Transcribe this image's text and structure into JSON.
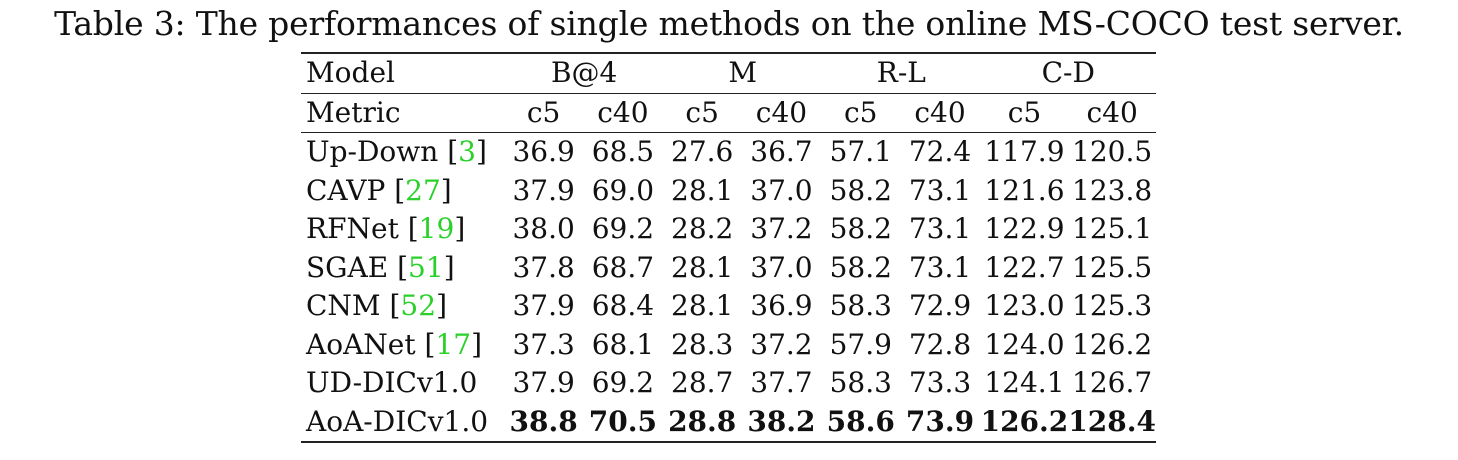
{
  "caption": "Table 3: The performances of single methods on the online MS-COCO test server.",
  "header": {
    "model_label": "Model",
    "metric_label": "Metric",
    "groups": [
      "B@4",
      "M",
      "R-L",
      "C-D"
    ],
    "subcols": [
      "c5",
      "c40",
      "c5",
      "c40",
      "c5",
      "c40",
      "c5",
      "c40"
    ]
  },
  "rows": [
    {
      "model": "Up-Down",
      "cite": "3",
      "values": [
        "36.9",
        "68.5",
        "27.6",
        "36.7",
        "57.1",
        "72.4",
        "117.9",
        "120.5"
      ]
    },
    {
      "model": "CAVP",
      "cite": "27",
      "values": [
        "37.9",
        "69.0",
        "28.1",
        "37.0",
        "58.2",
        "73.1",
        "121.6",
        "123.8"
      ]
    },
    {
      "model": "RFNet",
      "cite": "19",
      "values": [
        "38.0",
        "69.2",
        "28.2",
        "37.2",
        "58.2",
        "73.1",
        "122.9",
        "125.1"
      ]
    },
    {
      "model": "SGAE",
      "cite": "51",
      "values": [
        "37.8",
        "68.7",
        "28.1",
        "37.0",
        "58.2",
        "73.1",
        "122.7",
        "125.5"
      ]
    },
    {
      "model": "CNM",
      "cite": "52",
      "values": [
        "37.9",
        "68.4",
        "28.1",
        "36.9",
        "58.3",
        "72.9",
        "123.0",
        "125.3"
      ]
    },
    {
      "model": "AoANet",
      "cite": "17",
      "values": [
        "37.3",
        "68.1",
        "28.3",
        "37.2",
        "57.9",
        "72.8",
        "124.0",
        "126.2"
      ]
    },
    {
      "model": "UD-DICv1.0",
      "cite": "",
      "values": [
        "37.9",
        "69.2",
        "28.7",
        "37.7",
        "58.3",
        "73.3",
        "124.1",
        "126.7"
      ]
    },
    {
      "model": "AoA-DICv1.0",
      "cite": "",
      "values": [
        "38.8",
        "70.5",
        "28.8",
        "38.2",
        "58.6",
        "73.9",
        "126.2",
        "128.4"
      ],
      "bold": true
    }
  ],
  "colors": {
    "citation": "#2bd12b",
    "text": "#111111",
    "rule": "#222222"
  }
}
